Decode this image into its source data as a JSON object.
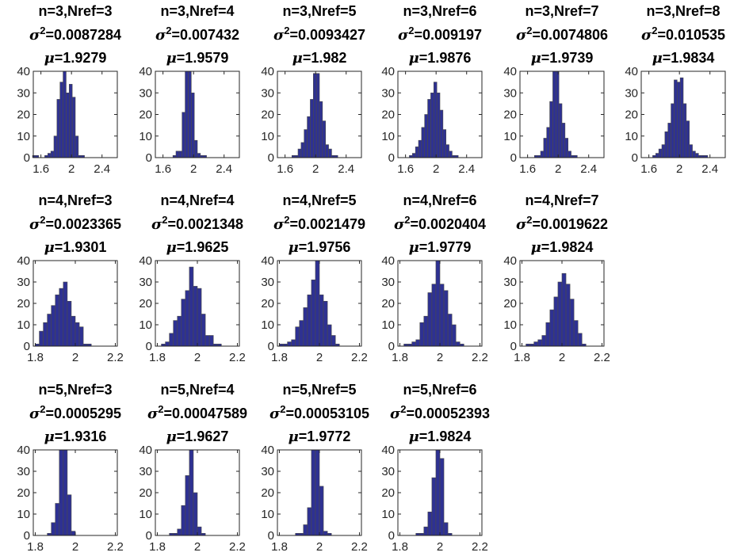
{
  "chart_data": [
    {
      "type": "bar",
      "title_n": "n=3,Nref=3",
      "title_var": "0.0087284",
      "title_mu": "1.9279",
      "xticks": [
        "1.6",
        "2",
        "2.4"
      ],
      "xlim": [
        1.5,
        2.6
      ],
      "yticks": [
        "0",
        "10",
        "20",
        "30",
        "40"
      ],
      "ylim": [
        0,
        40
      ],
      "bins": [
        1.51,
        1.55,
        1.59,
        1.63,
        1.67,
        1.71,
        1.75,
        1.79,
        1.83,
        1.87,
        1.91,
        1.95,
        1.99,
        2.03,
        2.07,
        2.11,
        2.15,
        2.19,
        2.23
      ],
      "counts": [
        1,
        1,
        0,
        0,
        1,
        2,
        3,
        10,
        27,
        35,
        41,
        30,
        34,
        28,
        10,
        1,
        1,
        0,
        0
      ]
    },
    {
      "type": "bar",
      "title_n": "n=3,Nref=4",
      "title_var": "0.007432",
      "title_mu": "1.9579",
      "xticks": [
        "1.6",
        "2",
        "2.4"
      ],
      "xlim": [
        1.5,
        2.6
      ],
      "yticks": [
        "0",
        "10",
        "20",
        "30",
        "40"
      ],
      "ylim": [
        0,
        40
      ],
      "bins": [
        1.75,
        1.79,
        1.83,
        1.87,
        1.91,
        1.95,
        1.99,
        2.03,
        2.07,
        2.11,
        2.15
      ],
      "counts": [
        1,
        3,
        3,
        21,
        41,
        41,
        30,
        8,
        2,
        1,
        1
      ]
    },
    {
      "type": "bar",
      "title_n": "n=3,Nref=5",
      "title_var": "0.0093427",
      "title_mu": "1.982",
      "xticks": [
        "1.6",
        "2",
        "2.4"
      ],
      "xlim": [
        1.5,
        2.6
      ],
      "yticks": [
        "0",
        "10",
        "20",
        "30",
        "40"
      ],
      "ylim": [
        0,
        40
      ],
      "bins": [
        1.71,
        1.75,
        1.79,
        1.83,
        1.87,
        1.91,
        1.95,
        1.99,
        2.03,
        2.07,
        2.11,
        2.15,
        2.19,
        2.23,
        2.27
      ],
      "counts": [
        1,
        1,
        4,
        7,
        13,
        19,
        27,
        39,
        39,
        26,
        17,
        6,
        4,
        1,
        1
      ]
    },
    {
      "type": "bar",
      "title_n": "n=3,Nref=6",
      "title_var": "0.009197",
      "title_mu": "1.9876",
      "xticks": [
        "1.6",
        "2",
        "2.4"
      ],
      "xlim": [
        1.5,
        2.6
      ],
      "yticks": [
        "0",
        "10",
        "20",
        "30",
        "40"
      ],
      "ylim": [
        0,
        40
      ],
      "bins": [
        1.67,
        1.71,
        1.75,
        1.79,
        1.83,
        1.87,
        1.91,
        1.95,
        1.99,
        2.03,
        2.07,
        2.11,
        2.15,
        2.19,
        2.23,
        2.27
      ],
      "counts": [
        1,
        2,
        5,
        8,
        14,
        20,
        27,
        30,
        35,
        30,
        22,
        13,
        6,
        3,
        1,
        1
      ]
    },
    {
      "type": "bar",
      "title_n": "n=3,Nref=7",
      "title_var": "0.0074806",
      "title_mu": "1.9739",
      "xticks": [
        "1.6",
        "2",
        "2.4"
      ],
      "xlim": [
        1.5,
        2.6
      ],
      "yticks": [
        "0",
        "10",
        "20",
        "30",
        "40"
      ],
      "ylim": [
        0,
        40
      ],
      "bins": [
        1.71,
        1.75,
        1.79,
        1.83,
        1.87,
        1.91,
        1.95,
        1.99,
        2.03,
        2.07,
        2.11,
        2.15,
        2.19,
        2.23
      ],
      "counts": [
        1,
        1,
        3,
        9,
        14,
        26,
        41,
        41,
        25,
        16,
        9,
        3,
        1,
        1
      ]
    },
    {
      "type": "bar",
      "title_n": "n=3,Nref=8",
      "title_var": "0.010535",
      "title_mu": "1.9834",
      "xticks": [
        "1.6",
        "2",
        "2.4"
      ],
      "xlim": [
        1.5,
        2.6
      ],
      "yticks": [
        "0",
        "10",
        "20",
        "30",
        "40"
      ],
      "ylim": [
        0,
        40
      ],
      "bins": [
        1.67,
        1.71,
        1.75,
        1.79,
        1.83,
        1.87,
        1.91,
        1.95,
        1.99,
        2.03,
        2.07,
        2.11,
        2.15,
        2.19,
        2.23,
        2.27,
        2.31,
        2.35
      ],
      "counts": [
        1,
        2,
        4,
        6,
        12,
        16,
        25,
        36,
        35,
        37,
        25,
        17,
        6,
        3,
        2,
        1,
        1,
        1
      ]
    },
    {
      "type": "bar",
      "title_n": "n=4,Nref=3",
      "title_var": "0.0023365",
      "title_mu": "1.9301",
      "xticks": [
        "1.8",
        "2",
        "2.2"
      ],
      "xlim": [
        1.79,
        2.21
      ],
      "yticks": [
        "0",
        "10",
        "20",
        "30",
        "40"
      ],
      "ylim": [
        0,
        40
      ],
      "bins": [
        1.81,
        1.83,
        1.85,
        1.87,
        1.89,
        1.91,
        1.93,
        1.95,
        1.97,
        1.99,
        2.01,
        2.03,
        2.05,
        2.07
      ],
      "counts": [
        1,
        7,
        11,
        15,
        19,
        24,
        27,
        30,
        21,
        14,
        11,
        9,
        1,
        1
      ]
    },
    {
      "type": "bar",
      "title_n": "n=4,Nref=4",
      "title_var": "0.0021348",
      "title_mu": "1.9625",
      "xticks": [
        "1.8",
        "2",
        "2.2"
      ],
      "xlim": [
        1.79,
        2.21
      ],
      "yticks": [
        "0",
        "10",
        "20",
        "30",
        "40"
      ],
      "ylim": [
        0,
        40
      ],
      "bins": [
        1.83,
        1.85,
        1.87,
        1.89,
        1.91,
        1.93,
        1.95,
        1.97,
        1.99,
        2.01,
        2.03,
        2.05,
        2.07,
        2.09,
        2.11
      ],
      "counts": [
        1,
        2,
        6,
        12,
        14,
        22,
        26,
        37,
        28,
        27,
        15,
        5,
        5,
        1,
        1
      ]
    },
    {
      "type": "bar",
      "title_n": "n=4,Nref=5",
      "title_var": "0.0021479",
      "title_mu": "1.9756",
      "xticks": [
        "1.8",
        "2",
        "2.2"
      ],
      "xlim": [
        1.79,
        2.21
      ],
      "yticks": [
        "0",
        "10",
        "20",
        "30",
        "40"
      ],
      "ylim": [
        0,
        40
      ],
      "bins": [
        1.81,
        1.83,
        1.85,
        1.87,
        1.89,
        1.91,
        1.93,
        1.95,
        1.97,
        1.99,
        2.01,
        2.03,
        2.05,
        2.07,
        2.09
      ],
      "counts": [
        1,
        1,
        2,
        3,
        9,
        12,
        18,
        24,
        31,
        41,
        24,
        21,
        10,
        5,
        1
      ]
    },
    {
      "type": "bar",
      "title_n": "n=4,Nref=6",
      "title_var": "0.0020404",
      "title_mu": "1.9779",
      "xticks": [
        "1.8",
        "2",
        "2.2"
      ],
      "xlim": [
        1.79,
        2.21
      ],
      "yticks": [
        "0",
        "10",
        "20",
        "30",
        "40"
      ],
      "ylim": [
        0,
        40
      ],
      "bins": [
        1.83,
        1.85,
        1.87,
        1.89,
        1.91,
        1.93,
        1.95,
        1.97,
        1.99,
        2.01,
        2.03,
        2.05,
        2.07,
        2.09,
        2.11
      ],
      "counts": [
        1,
        1,
        2,
        3,
        11,
        14,
        25,
        29,
        43,
        29,
        26,
        15,
        10,
        2,
        1
      ]
    },
    {
      "type": "bar",
      "title_n": "n=4,Nref=7",
      "title_var": "0.0019622",
      "title_mu": "1.9824",
      "xticks": [
        "1.8",
        "2",
        "2.2"
      ],
      "xlim": [
        1.79,
        2.21
      ],
      "yticks": [
        "0",
        "10",
        "20",
        "30",
        "40"
      ],
      "ylim": [
        0,
        40
      ],
      "bins": [
        1.83,
        1.85,
        1.87,
        1.89,
        1.91,
        1.93,
        1.95,
        1.97,
        1.99,
        2.01,
        2.03,
        2.05,
        2.07,
        2.09,
        2.11
      ],
      "counts": [
        1,
        1,
        2,
        3,
        5,
        11,
        17,
        23,
        30,
        34,
        29,
        22,
        12,
        6,
        1
      ]
    },
    {
      "type": "bar",
      "title_n": "n=5,Nref=3",
      "title_var": "0.0005295",
      "title_mu": "1.9316",
      "xticks": [
        "1.8",
        "2",
        "2.2"
      ],
      "xlim": [
        1.79,
        2.21
      ],
      "yticks": [
        "0",
        "10",
        "20",
        "30",
        "40"
      ],
      "ylim": [
        0,
        40
      ],
      "bins": [
        1.85,
        1.87,
        1.89,
        1.91,
        1.93,
        1.95,
        1.97,
        1.99
      ],
      "counts": [
        0,
        1,
        6,
        15,
        41,
        41,
        19,
        2
      ]
    },
    {
      "type": "bar",
      "title_n": "n=5,Nref=4",
      "title_var": "0.00047589",
      "title_mu": "1.9627",
      "xticks": [
        "1.8",
        "2",
        "2.2"
      ],
      "xlim": [
        1.79,
        2.21
      ],
      "yticks": [
        "0",
        "10",
        "20",
        "30",
        "40"
      ],
      "ylim": [
        0,
        40
      ],
      "bins": [
        1.87,
        1.89,
        1.91,
        1.93,
        1.95,
        1.97,
        1.99,
        2.01,
        2.03
      ],
      "counts": [
        1,
        1,
        3,
        14,
        28,
        41,
        20,
        4,
        1
      ]
    },
    {
      "type": "bar",
      "title_n": "n=5,Nref=5",
      "title_var": "0.00053105",
      "title_mu": "1.9772",
      "xticks": [
        "1.8",
        "2",
        "2.2"
      ],
      "xlim": [
        1.79,
        2.21
      ],
      "yticks": [
        "0",
        "10",
        "20",
        "30",
        "40"
      ],
      "ylim": [
        0,
        40
      ],
      "bins": [
        1.89,
        1.91,
        1.93,
        1.95,
        1.97,
        1.99,
        2.01,
        2.03,
        2.05
      ],
      "counts": [
        1,
        1,
        5,
        13,
        41,
        41,
        23,
        2,
        1
      ]
    },
    {
      "type": "bar",
      "title_n": "n=5,Nref=6",
      "title_var": "0.00052393",
      "title_mu": "1.9824",
      "xticks": [
        "1.8",
        "2",
        "2.2"
      ],
      "xlim": [
        1.79,
        2.21
      ],
      "yticks": [
        "0",
        "10",
        "20",
        "30",
        "40"
      ],
      "ylim": [
        0,
        40
      ],
      "bins": [
        1.89,
        1.91,
        1.93,
        1.95,
        1.97,
        1.99,
        2.01,
        2.03,
        2.05
      ],
      "counts": [
        1,
        1,
        4,
        11,
        27,
        41,
        36,
        6,
        1
      ]
    }
  ]
}
